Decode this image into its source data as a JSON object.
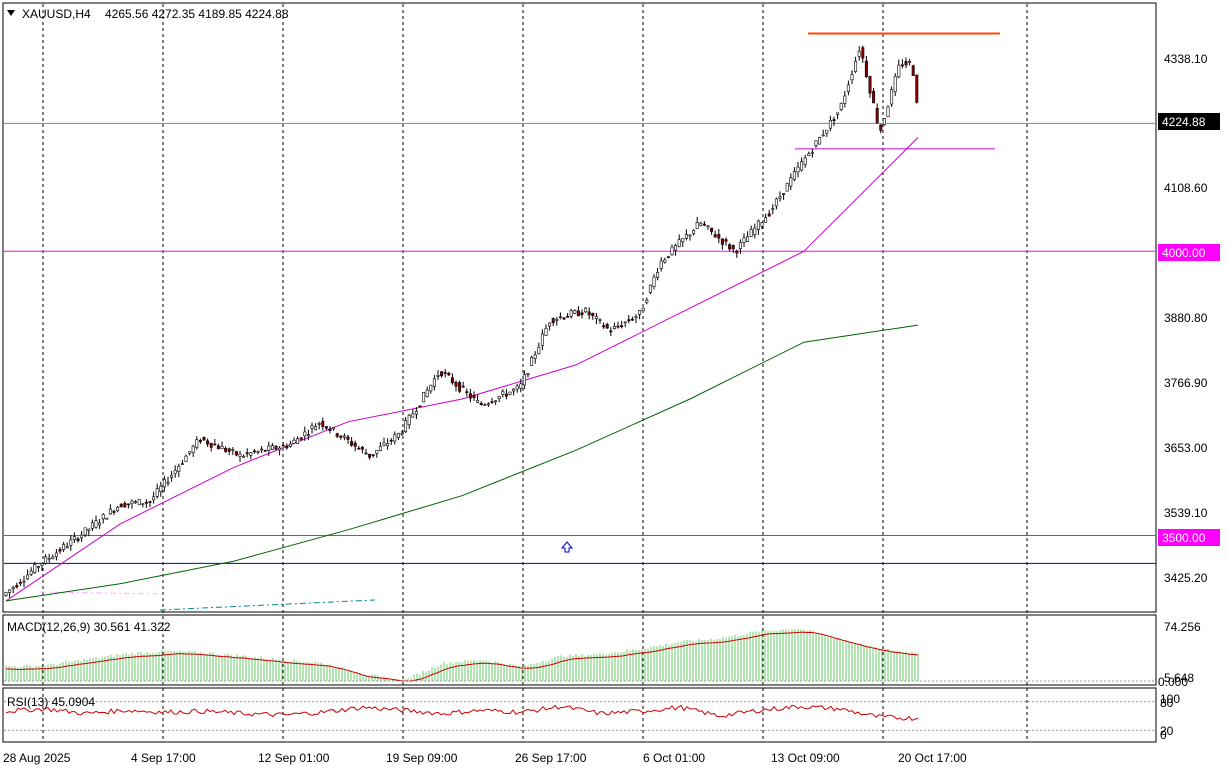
{
  "header": {
    "symbol": "XAUUSD,H4",
    "ohlc": "4265.56 4272.35 4189.85 4224.88",
    "menu_icon": "triangle-down-icon"
  },
  "price_axis": {
    "ticks": [
      "4338.10",
      "4108.60",
      "3880.80",
      "3766.90",
      "3653.00",
      "3539.10",
      "3425.20"
    ],
    "current_price": "4224.88",
    "levels": [
      {
        "label": "4000.00",
        "price": 4000.0,
        "color": "#ff00ff"
      },
      {
        "label": "3500.00",
        "price": 3500.0,
        "color": "#ff00ff"
      }
    ]
  },
  "time_axis": {
    "labels": [
      "28 Aug 2025",
      "4 Sep 17:00",
      "12 Sep 01:00",
      "19 Sep 09:00",
      "26 Sep 17:00",
      "6 Oct 01:00",
      "13 Oct 09:00",
      "20 Oct 17:00"
    ]
  },
  "macd": {
    "title": "MACD(12,26,9) 30.561 41.322",
    "max_label": "74.256",
    "min_label": "5.648",
    "zero_label": "0.000"
  },
  "rsi": {
    "title": "RSI(13) 45.0904",
    "labels": [
      "100",
      "80",
      "20",
      "0"
    ]
  },
  "colors": {
    "bull": "#006400",
    "bear": "#8b0000",
    "ma_fast": "#cc00cc",
    "ma_slow": "#006400",
    "resistance": "#ff4500",
    "support": "#cc00cc",
    "blue_level": "#0000cc",
    "macd_hist": "#66cc66",
    "macd_signal": "#cc0000",
    "rsi_line": "#cc0000"
  },
  "chart_data": {
    "type": "candlestick",
    "symbol": "XAUUSD",
    "timeframe": "H4",
    "price_range": [
      3380,
      4400
    ],
    "key_points": [
      {
        "x": 0,
        "price": 3390
      },
      {
        "x": 40,
        "price": 3450
      },
      {
        "x": 80,
        "price": 3500
      },
      {
        "x": 120,
        "price": 3555
      },
      {
        "x": 150,
        "price": 3560
      },
      {
        "x": 200,
        "price": 3670
      },
      {
        "x": 240,
        "price": 3640
      },
      {
        "x": 290,
        "price": 3660
      },
      {
        "x": 320,
        "price": 3700
      },
      {
        "x": 370,
        "price": 3640
      },
      {
        "x": 400,
        "price": 3680
      },
      {
        "x": 440,
        "price": 3790
      },
      {
        "x": 480,
        "price": 3730
      },
      {
        "x": 520,
        "price": 3760
      },
      {
        "x": 550,
        "price": 3880
      },
      {
        "x": 585,
        "price": 3895
      },
      {
        "x": 610,
        "price": 3860
      },
      {
        "x": 640,
        "price": 3890
      },
      {
        "x": 660,
        "price": 3980
      },
      {
        "x": 700,
        "price": 4050
      },
      {
        "x": 735,
        "price": 4000
      },
      {
        "x": 770,
        "price": 4070
      },
      {
        "x": 800,
        "price": 4150
      },
      {
        "x": 840,
        "price": 4250
      },
      {
        "x": 860,
        "price": 4360
      },
      {
        "x": 880,
        "price": 4210
      },
      {
        "x": 900,
        "price": 4330
      },
      {
        "x": 912,
        "price": 4330
      },
      {
        "x": 920,
        "price": 4225
      }
    ],
    "overlays": {
      "ma_fast": [
        3385,
        3520,
        3620,
        3700,
        3740,
        3800,
        3900,
        4000,
        4200
      ],
      "ma_slow": [
        3385,
        3415,
        3455,
        3510,
        3570,
        3650,
        3740,
        3840,
        3870
      ]
    },
    "horizontal_levels": [
      4380,
      4200,
      4000,
      3500,
      3462
    ],
    "macd_hist": [
      20,
      22,
      30,
      38,
      42,
      40,
      35,
      30,
      25,
      10,
      0,
      25,
      30,
      20,
      35,
      38,
      45,
      55,
      60,
      70,
      74,
      60,
      45,
      40
    ],
    "rsi_values": [
      60,
      65,
      55,
      62,
      58,
      60,
      55,
      52,
      58,
      68,
      62,
      55,
      62,
      58,
      70,
      55,
      60,
      68,
      50,
      62,
      70,
      65,
      48,
      45
    ]
  }
}
